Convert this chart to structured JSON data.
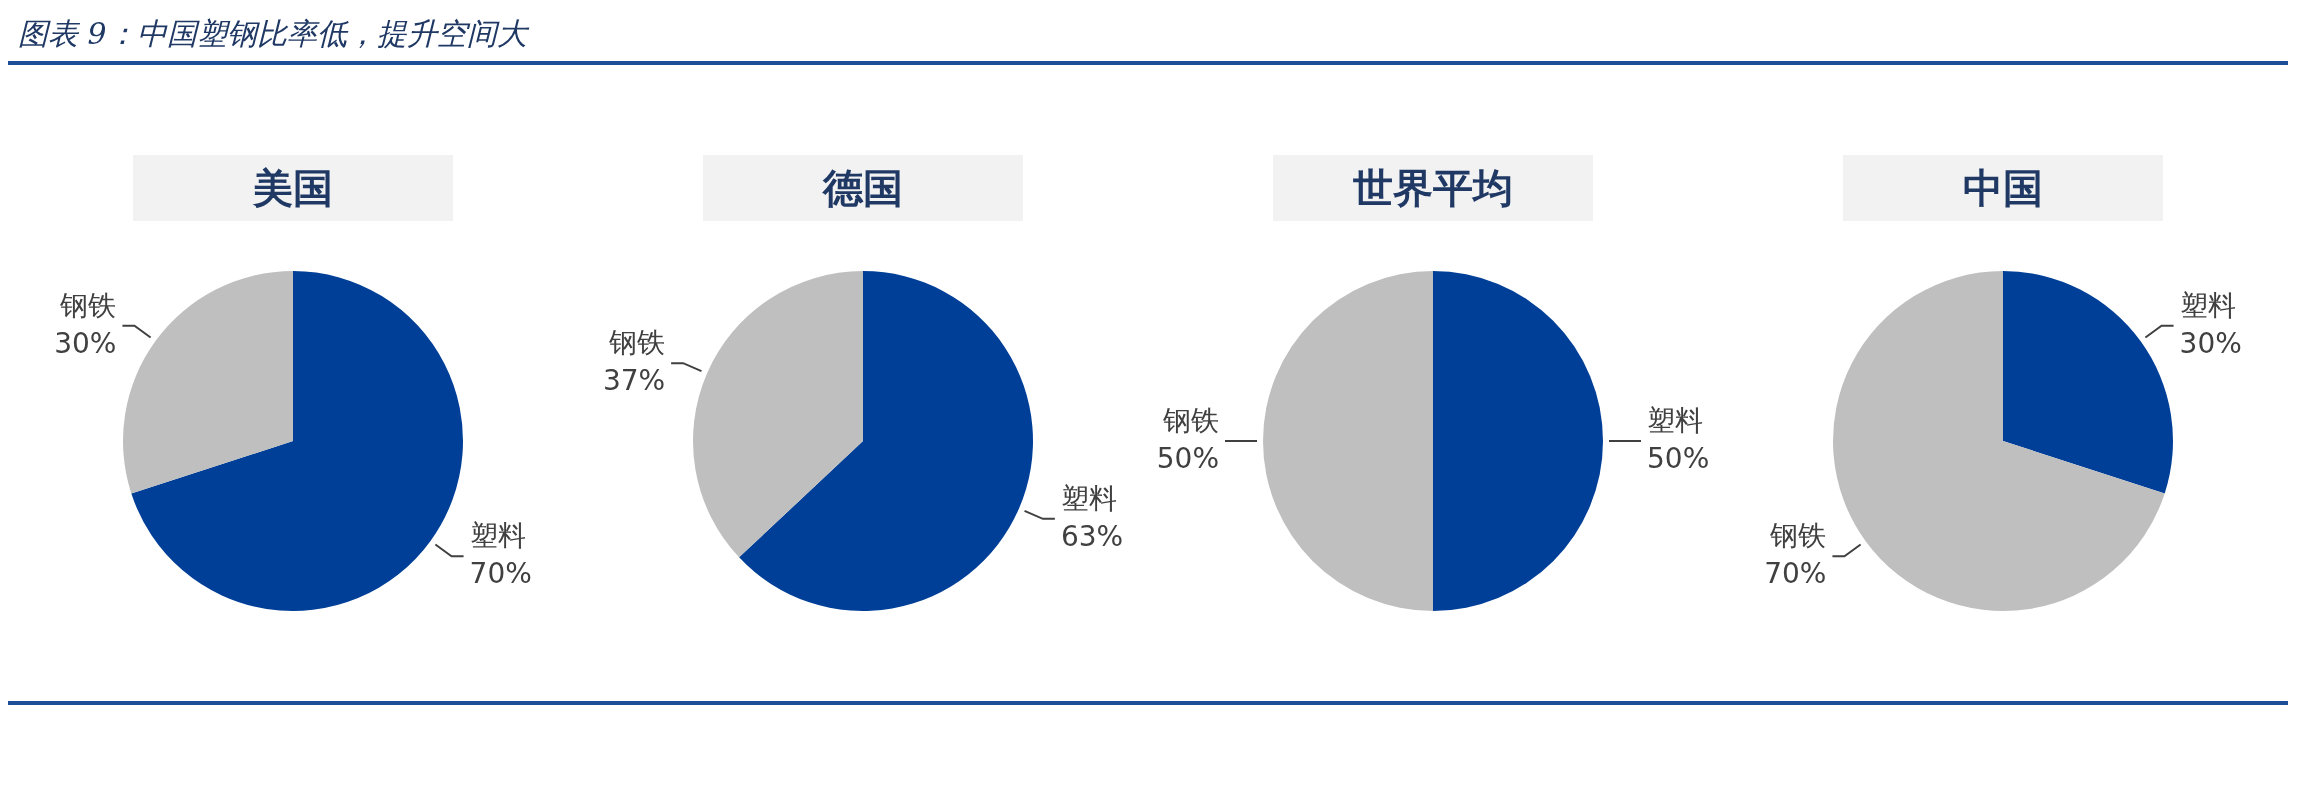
{
  "chart_data": [
    {
      "type": "other",
      "title": "图表 9：中国塑钢比率低，提升空间大"
    },
    {
      "type": "pie",
      "title": "美国",
      "categories": [
        "塑料",
        "钢铁"
      ],
      "values": [
        70,
        30
      ],
      "value_labels": [
        "70%",
        "30%"
      ],
      "colors": [
        "#003f98",
        "#bfbfbf"
      ]
    },
    {
      "type": "pie",
      "title": "德国",
      "categories": [
        "塑料",
        "钢铁"
      ],
      "values": [
        63,
        37
      ],
      "value_labels": [
        "63%",
        "37%"
      ],
      "colors": [
        "#003f98",
        "#bfbfbf"
      ]
    },
    {
      "type": "pie",
      "title": "世界平均",
      "categories": [
        "塑料",
        "钢铁"
      ],
      "values": [
        50,
        50
      ],
      "value_labels": [
        "50%",
        "50%"
      ],
      "colors": [
        "#003f98",
        "#bfbfbf"
      ]
    },
    {
      "type": "pie",
      "title": "中国",
      "categories": [
        "塑料",
        "钢铁"
      ],
      "values": [
        30,
        70
      ],
      "value_labels": [
        "30%",
        "70%"
      ],
      "colors": [
        "#003f98",
        "#bfbfbf"
      ]
    }
  ]
}
